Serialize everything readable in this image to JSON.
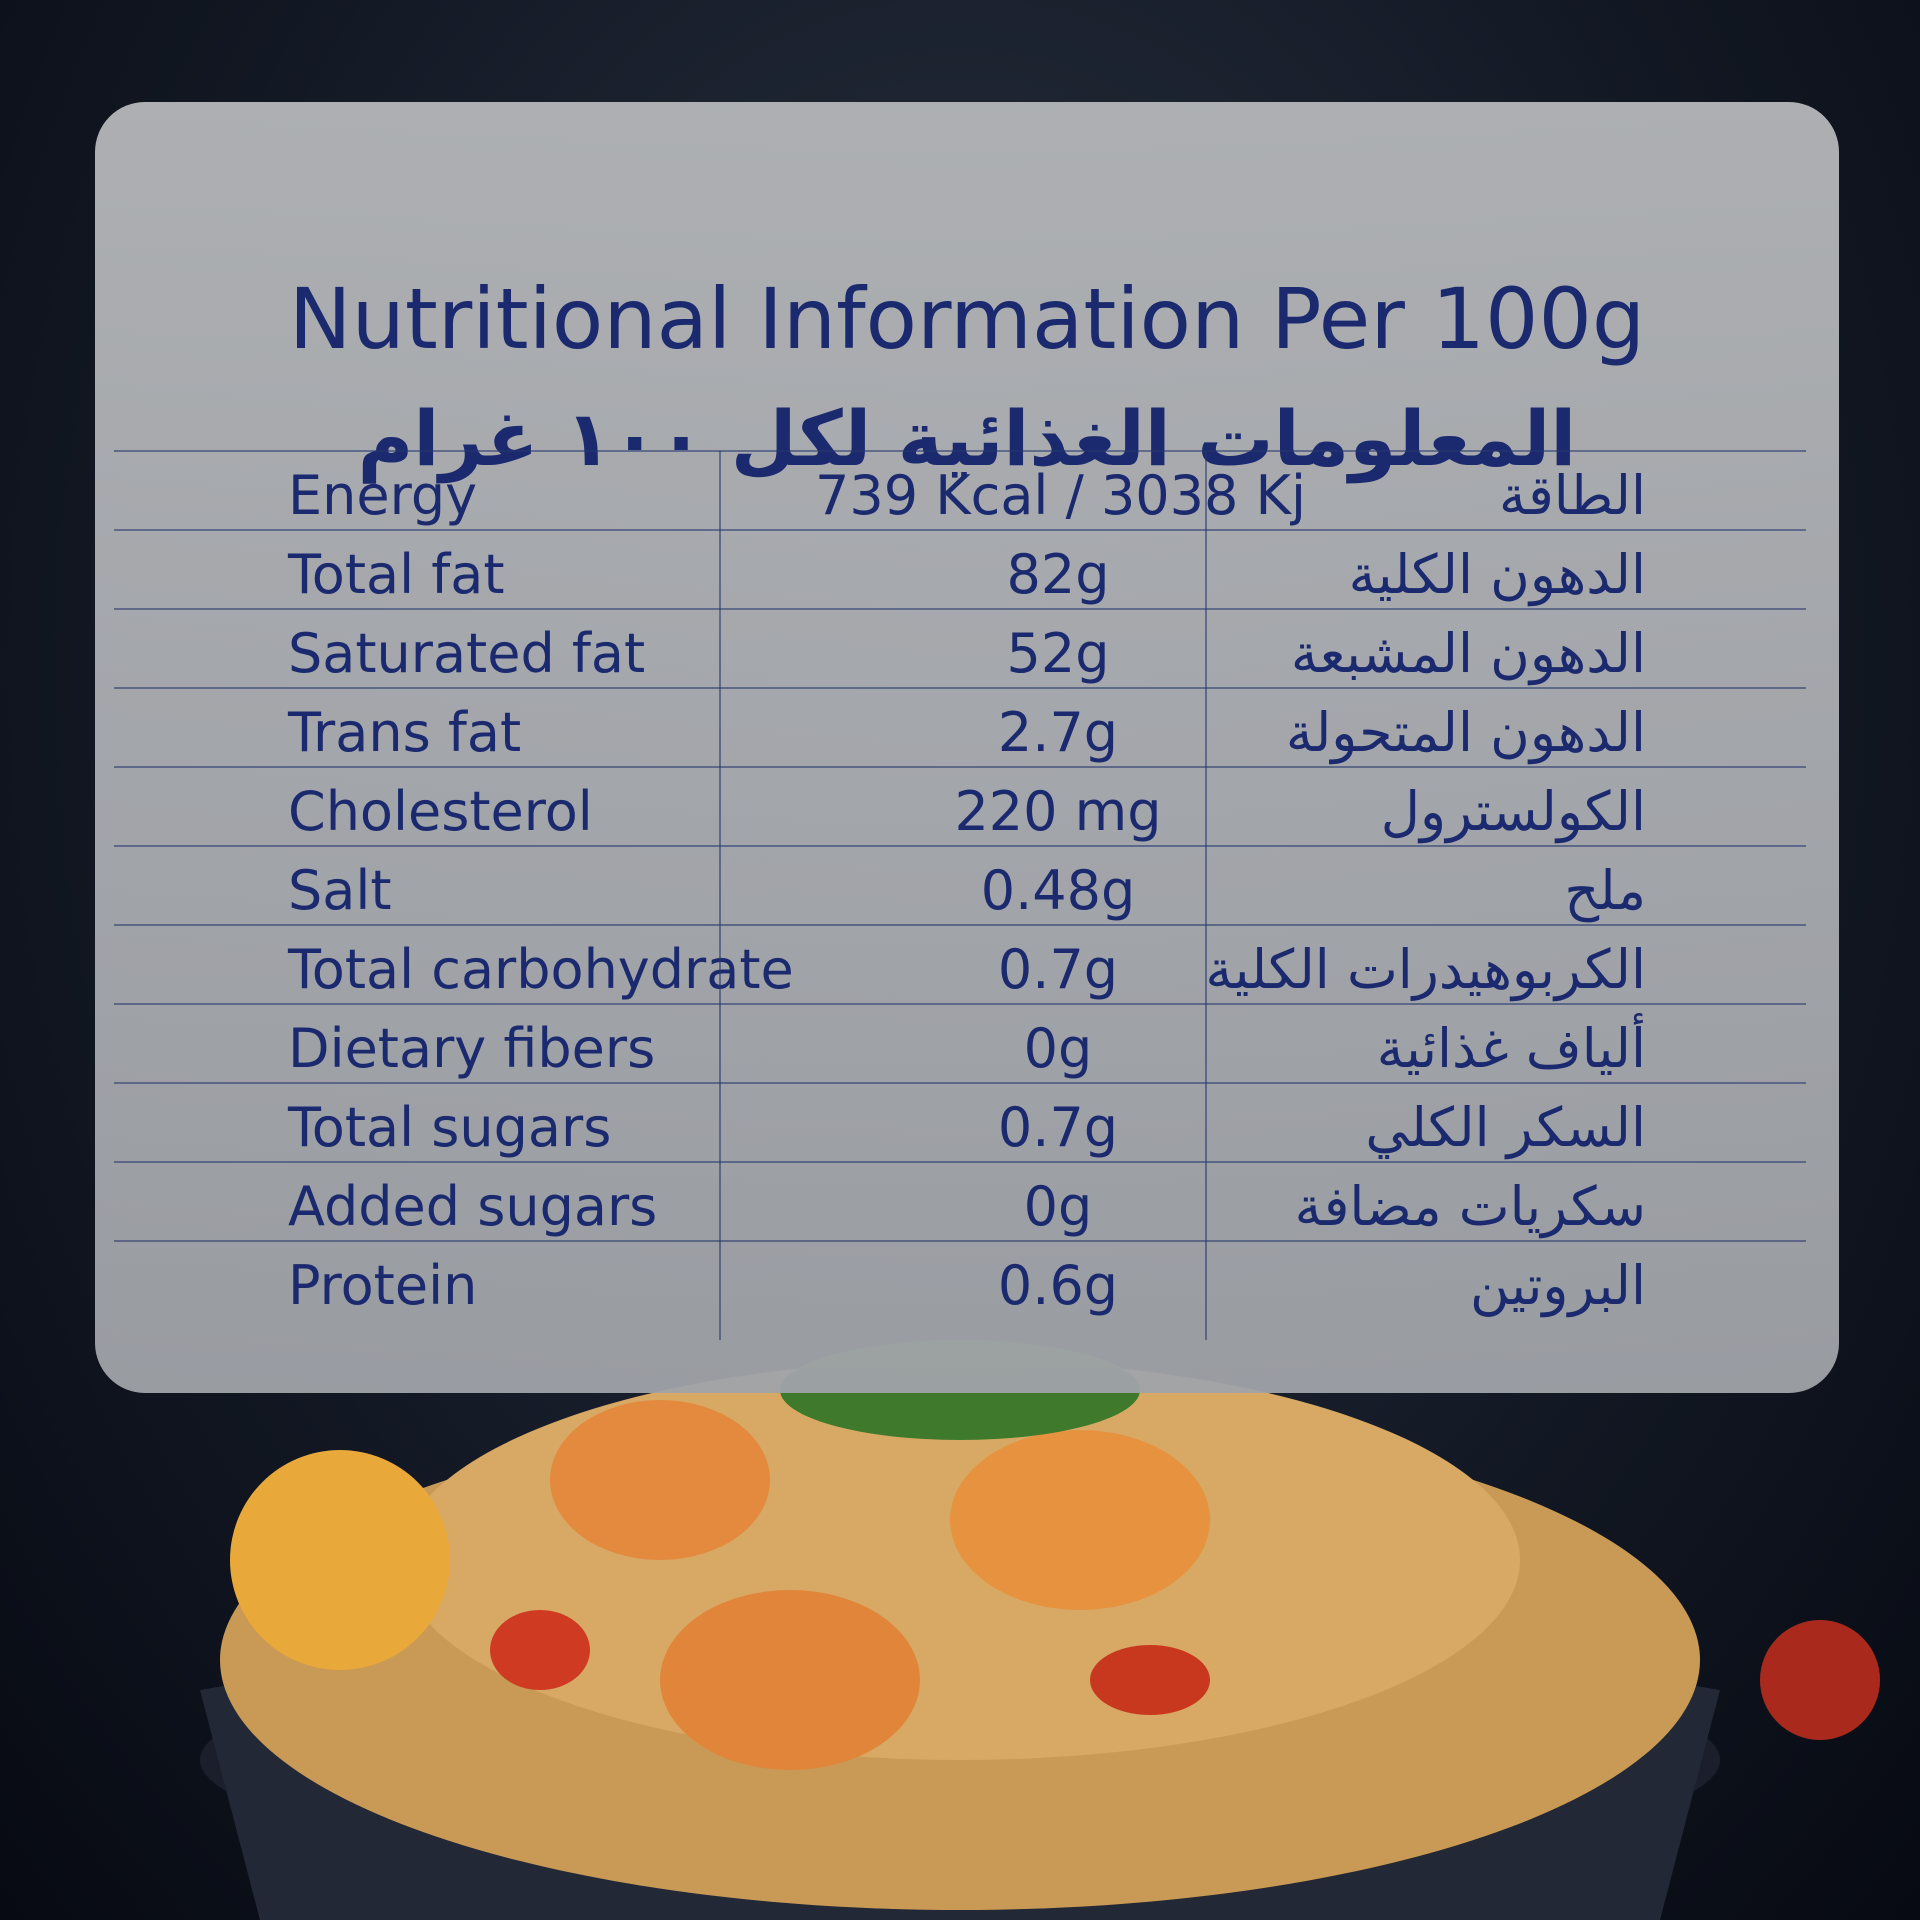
{
  "title": "Nutritional Information Per 100g",
  "subtitle": "المعلومات الغذائية لكل ١٠٠ غرام",
  "table": {
    "rows": [
      [
        "Energy",
        "739 Kcal / 3038 Kj",
        "الطاقة"
      ],
      [
        "Total fat",
        "82g",
        "الدهون الكلية"
      ],
      [
        "Saturated fat",
        "52g",
        "الدهون المشبعة"
      ],
      [
        "Trans fat",
        "2.7g",
        "الدهون المتحولة"
      ],
      [
        "Cholesterol",
        "220 mg",
        "الكولسترول"
      ],
      [
        "Salt",
        "0.48g",
        "ملح"
      ],
      [
        "Total carbohydrate",
        "0.7g",
        "الكربوهيدرات الكلية"
      ],
      [
        "Dietary fibers",
        "0g",
        "ألياف غذائية"
      ],
      [
        "Total sugars",
        "0.7g",
        "السكر الكلي"
      ],
      [
        "Added sugars",
        "0g",
        "سكريات مضافة"
      ],
      [
        "Protein",
        "0.6g",
        "البروتين"
      ]
    ]
  }
}
